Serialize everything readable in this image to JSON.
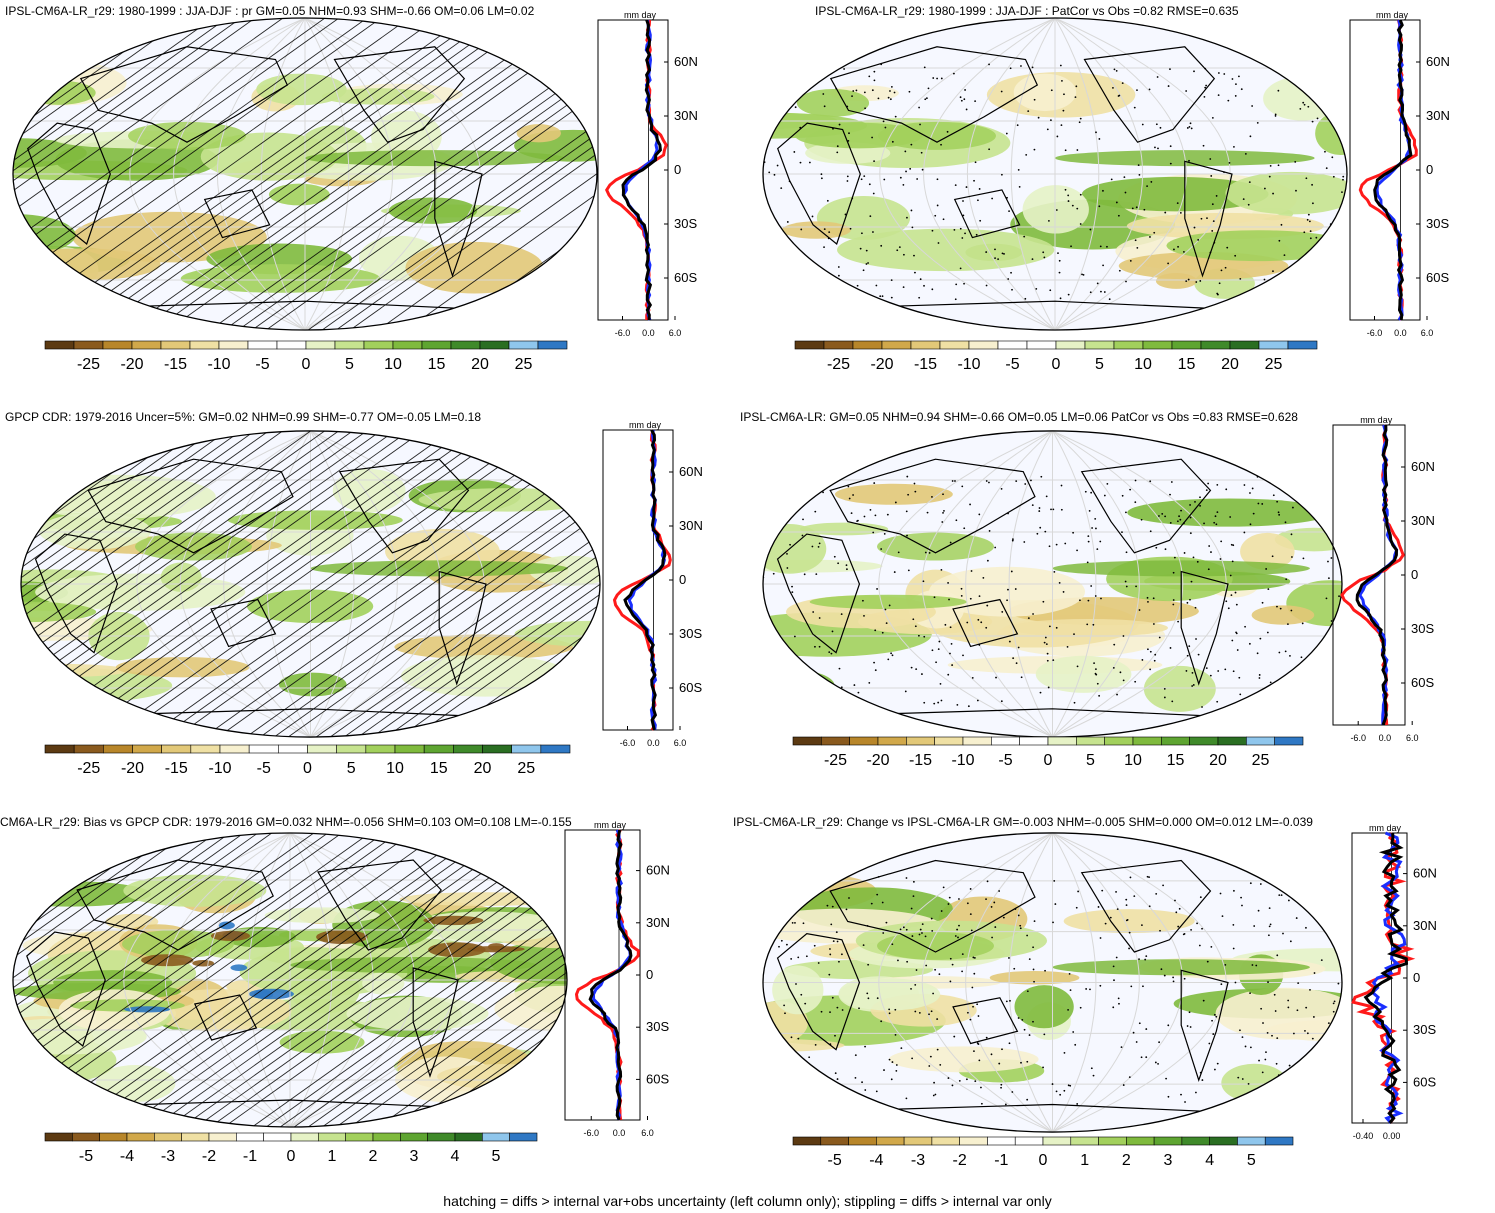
{
  "panels": [
    {
      "title": "IPSL-CM6A-LR_r29: 1980-1999 : JJA-DJF : pr GM=0.05 NHM=0.93 SHM=-0.66 OM=0.06 LM=0.02",
      "pattern": "hatch",
      "profile_unit": "mm day",
      "profile_lat_ticks": [
        "60N",
        "30N",
        "0",
        "30S",
        "60S"
      ],
      "profile_x_ticks": [
        "-6.0",
        "0.0",
        "6.0"
      ],
      "colorbar_labels": [
        "-25",
        "-20",
        "-15",
        "-10",
        "-5",
        "0",
        "5",
        "10",
        "15",
        "20",
        "25"
      ]
    },
    {
      "title": "IPSL-CM6A-LR_r29: 1980-1999 : JJA-DJF : PatCor vs Obs =0.82 RMSE=0.635",
      "pattern": "stipple",
      "profile_unit": "mm day",
      "profile_lat_ticks": [
        "60N",
        "30N",
        "0",
        "30S",
        "60S"
      ],
      "profile_x_ticks": [
        "-6.0",
        "0.0",
        "6.0"
      ],
      "colorbar_labels": [
        "-25",
        "-20",
        "-15",
        "-10",
        "-5",
        "0",
        "5",
        "10",
        "15",
        "20",
        "25"
      ]
    },
    {
      "title": "GPCP CDR: 1979-2016 Uncer=5%: GM=0.02 NHM=0.99 SHM=-0.77 OM=-0.05 LM=0.18",
      "pattern": "hatch",
      "profile_unit": "mm day",
      "profile_lat_ticks": [
        "60N",
        "30N",
        "0",
        "30S",
        "60S"
      ],
      "profile_x_ticks": [
        "-6.0",
        "0.0",
        "6.0"
      ],
      "colorbar_labels": [
        "-25",
        "-20",
        "-15",
        "-10",
        "-5",
        "0",
        "5",
        "10",
        "15",
        "20",
        "25"
      ]
    },
    {
      "title": "IPSL-CM6A-LR: GM=0.05 NHM=0.94 SHM=-0.66 OM=0.05 LM=0.06 PatCor vs Obs =0.83 RMSE=0.628",
      "pattern": "stipple",
      "profile_unit": "mm day",
      "profile_lat_ticks": [
        "60N",
        "30N",
        "0",
        "30S",
        "60S"
      ],
      "profile_x_ticks": [
        "-6.0",
        "0.0",
        "6.0"
      ],
      "colorbar_labels": [
        "-25",
        "-20",
        "-15",
        "-10",
        "-5",
        "0",
        "5",
        "10",
        "15",
        "20",
        "25"
      ]
    },
    {
      "title": "CM6A-LR_r29: Bias vs GPCP CDR: 1979-2016 GM=0.032 NHM=-0.056 SHM=0.103 OM=0.108 LM=-0.155",
      "pattern": "hatch",
      "profile_unit": "mm day",
      "profile_lat_ticks": [
        "60N",
        "30N",
        "0",
        "30S",
        "60S"
      ],
      "profile_x_ticks": [
        "-6.0",
        "0.0",
        "6.0"
      ],
      "colorbar_labels": [
        "-5",
        "-4",
        "-3",
        "-2",
        "-1",
        "0",
        "1",
        "2",
        "3",
        "4",
        "5"
      ]
    },
    {
      "title": "IPSL-CM6A-LR_r29: Change vs IPSL-CM6A-LR GM=-0.003 NHM=-0.005 SHM=0.000 OM=0.012 LM=-0.039",
      "pattern": "stipple",
      "profile_unit": "mm day",
      "profile_lat_ticks": [
        "60N",
        "30N",
        "0",
        "30S",
        "60S"
      ],
      "profile_x_ticks": [
        "-0.40",
        "0.00"
      ],
      "colorbar_labels": [
        "-5",
        "-4",
        "-3",
        "-2",
        "-1",
        "0",
        "1",
        "2",
        "3",
        "4",
        "5"
      ]
    }
  ],
  "colorbar_colors": [
    "#5c3a12",
    "#8a5a1e",
    "#b8862a",
    "#d1a84a",
    "#e2c878",
    "#efe0a4",
    "#f7f0cf",
    "#ffffff",
    "#ffffff",
    "#e6f2c6",
    "#c6e38f",
    "#a2d05c",
    "#7fba3d",
    "#5ea531",
    "#3f8a2a",
    "#2a6e22",
    "#8fc6ec",
    "#2f78c4"
  ],
  "profile_colors": {
    "red": "#ff1a1a",
    "blue": "#1a2fff",
    "black": "#000000"
  },
  "footer": "hatching = diffs > internal var+obs uncertainty (left column only); stippling = diffs > internal var only"
}
